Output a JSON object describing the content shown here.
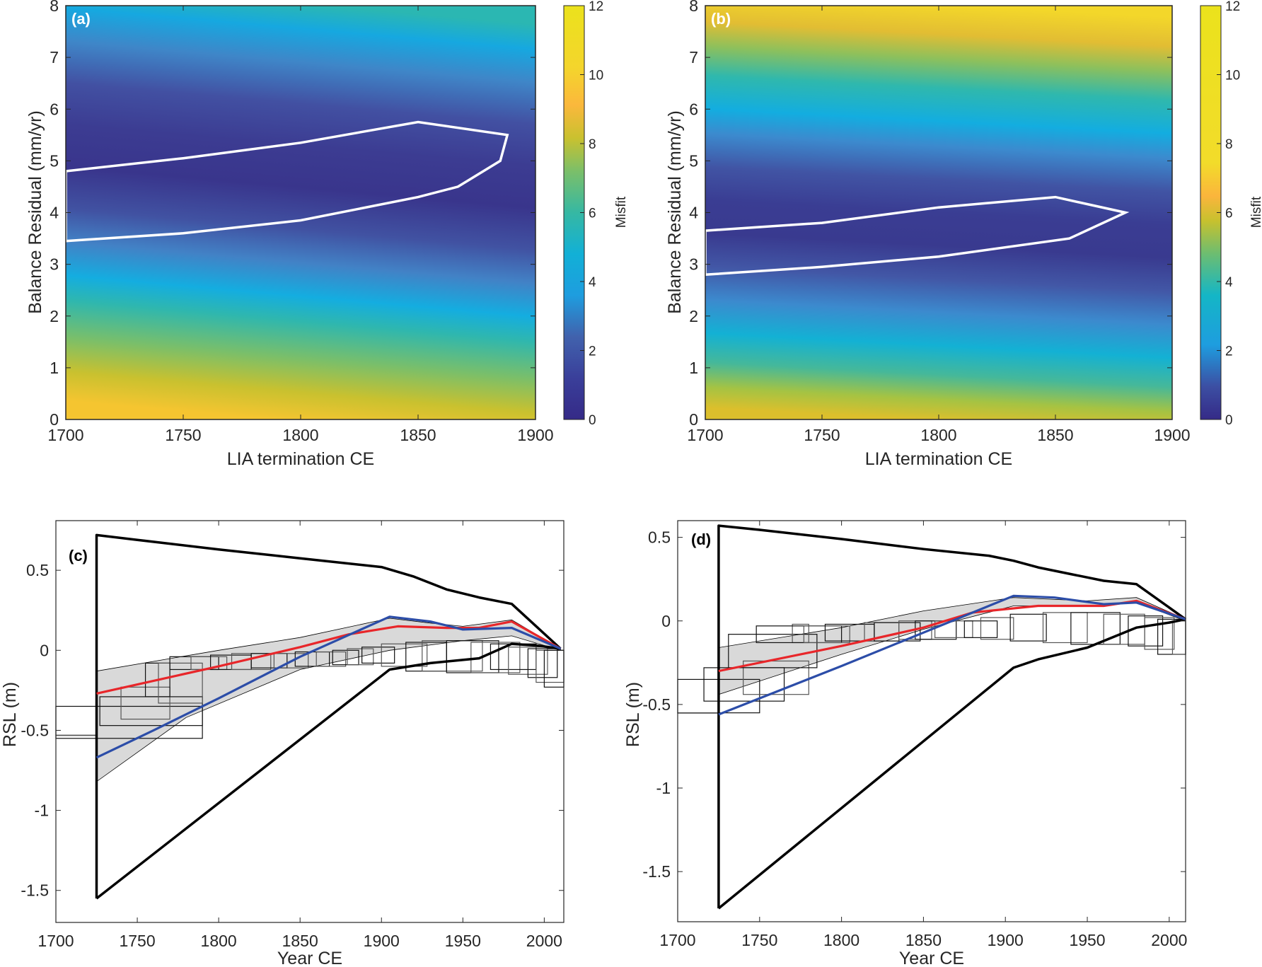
{
  "chart_data": [
    {
      "id": "a",
      "type": "heatmap",
      "panel_label": "(a)",
      "panel_label_color": "#ffffff",
      "xlabel": "LIA termination CE",
      "ylabel": "Balance Residual (mm/yr)",
      "xlim": [
        1700,
        1900
      ],
      "ylim": [
        0,
        8
      ],
      "xticks": [
        1700,
        1750,
        1800,
        1850,
        1900
      ],
      "yticks": [
        0,
        1,
        2,
        3,
        4,
        5,
        6,
        7,
        8
      ],
      "colorbar": {
        "label": "Misfit",
        "range": [
          0,
          12
        ],
        "ticks": [
          0,
          2,
          4,
          6,
          8,
          10,
          12
        ],
        "colormap": "parula"
      },
      "field_description": "Misfit minimum (~0-1) along a band from ~4.1 mm/yr at 1700 to ~5.0 mm/yr at 1850; increases to ~4 at 8 mm/yr and to ~9-11 at 0 mm/yr",
      "band": {
        "center": [
          [
            1700,
            4.1
          ],
          [
            1900,
            5.1
          ]
        ],
        "min_misfit": 0.5
      },
      "contour": {
        "color": "#ffffff",
        "points": [
          [
            1700,
            4.8
          ],
          [
            1750,
            5.05
          ],
          [
            1800,
            5.35
          ],
          [
            1850,
            5.75
          ],
          [
            1888,
            5.5
          ],
          [
            1885,
            5.0
          ],
          [
            1867,
            4.5
          ],
          [
            1850,
            4.3
          ],
          [
            1800,
            3.85
          ],
          [
            1750,
            3.6
          ],
          [
            1700,
            3.45
          ]
        ]
      }
    },
    {
      "id": "b",
      "type": "heatmap",
      "panel_label": "(b)",
      "panel_label_color": "#ffffff",
      "xlabel": "LIA termination CE",
      "ylabel": "Balance Residual (mm/yr)",
      "xlim": [
        1700,
        1900
      ],
      "ylim": [
        0,
        8
      ],
      "xticks": [
        1700,
        1750,
        1800,
        1850,
        1900
      ],
      "yticks": [
        0,
        1,
        2,
        3,
        4,
        5,
        6,
        7,
        8
      ],
      "colorbar": {
        "label": "Misfit",
        "range": [
          0,
          12
        ],
        "ticks": [
          0,
          2,
          4,
          6,
          8,
          10,
          12
        ],
        "colormap": "parula (saturates ~7)"
      },
      "field_description": "Misfit minimum along a band from ~3.3 mm/yr at 1700 to ~3.9 mm/yr at 1880; increases to ~6-7 at both 0 and 8 mm/yr",
      "band": {
        "center": [
          [
            1700,
            3.3
          ],
          [
            1900,
            3.9
          ]
        ],
        "min_misfit": 0.3
      },
      "contour": {
        "color": "#ffffff",
        "points": [
          [
            1700,
            3.65
          ],
          [
            1750,
            3.8
          ],
          [
            1800,
            4.1
          ],
          [
            1850,
            4.3
          ],
          [
            1880,
            4.0
          ],
          [
            1856,
            3.5
          ],
          [
            1800,
            3.15
          ],
          [
            1750,
            2.95
          ],
          [
            1700,
            2.8
          ]
        ]
      }
    },
    {
      "id": "c",
      "type": "line",
      "panel_label": "(c)",
      "xlabel": "Year CE",
      "ylabel": "RSL (m)",
      "xlim": [
        1700,
        2012
      ],
      "ylim": [
        -1.7,
        0.81
      ],
      "xticks": [
        1700,
        1750,
        1800,
        1850,
        1900,
        1950,
        2000
      ],
      "yticks": [
        -1.5,
        -1,
        -0.5,
        0,
        0.5
      ],
      "ytick_labels": [
        "-1.5",
        "-1",
        "-0.5",
        "0",
        "0.5"
      ],
      "envelope": {
        "color": "#000000",
        "upper": [
          [
            1725,
            -1.55
          ],
          [
            1725,
            0.72
          ],
          [
            1750,
            0.69
          ],
          [
            1800,
            0.63
          ],
          [
            1850,
            0.575
          ],
          [
            1900,
            0.52
          ],
          [
            1920,
            0.46
          ],
          [
            1940,
            0.38
          ],
          [
            1960,
            0.33
          ],
          [
            1980,
            0.29
          ],
          [
            2010,
            0.01
          ]
        ],
        "lower": [
          [
            1725,
            -1.55
          ],
          [
            1905,
            -0.12
          ],
          [
            1930,
            -0.08
          ],
          [
            1960,
            -0.05
          ],
          [
            1980,
            0.04
          ],
          [
            1995,
            0.03
          ],
          [
            2010,
            0.01
          ]
        ]
      },
      "band": {
        "fill": "#d9d9d9",
        "upper": [
          [
            1725,
            -0.13
          ],
          [
            1800,
            0.0
          ],
          [
            1850,
            0.08
          ],
          [
            1905,
            0.2
          ],
          [
            1930,
            0.17
          ],
          [
            1950,
            0.15
          ],
          [
            1980,
            0.19
          ],
          [
            2010,
            0.01
          ]
        ],
        "lower": [
          [
            1725,
            -0.82
          ],
          [
            1780,
            -0.42
          ],
          [
            1850,
            -0.12
          ],
          [
            1905,
            0.0
          ],
          [
            1950,
            0.06
          ],
          [
            1980,
            0.09
          ],
          [
            2010,
            0.0
          ]
        ]
      },
      "series": [
        {
          "name": "red",
          "color": "#e8262a",
          "points": [
            [
              1725,
              -0.27
            ],
            [
              1800,
              -0.1
            ],
            [
              1850,
              0.02
            ],
            [
              1880,
              0.1
            ],
            [
              1910,
              0.15
            ],
            [
              1940,
              0.14
            ],
            [
              1960,
              0.14
            ],
            [
              1980,
              0.18
            ],
            [
              2010,
              0.01
            ]
          ]
        },
        {
          "name": "blue",
          "color": "#2c4da8",
          "points": [
            [
              1725,
              -0.67
            ],
            [
              1760,
              -0.5
            ],
            [
              1800,
              -0.3
            ],
            [
              1850,
              -0.04
            ],
            [
              1905,
              0.21
            ],
            [
              1930,
              0.18
            ],
            [
              1950,
              0.13
            ],
            [
              1980,
              0.14
            ],
            [
              2010,
              0.01
            ]
          ]
        }
      ],
      "boxes": [
        [
          1700,
          1790,
          -0.55,
          -0.35
        ],
        [
          1700,
          1725,
          -0.53,
          -0.53
        ],
        [
          1727,
          1790,
          -0.47,
          -0.29
        ],
        [
          1740,
          1770,
          -0.43,
          -0.23
        ],
        [
          1755,
          1770,
          -0.29,
          -0.08
        ],
        [
          1763,
          1790,
          -0.33,
          -0.08
        ],
        [
          1770,
          1800,
          -0.12,
          -0.04
        ],
        [
          1783,
          1805,
          -0.12,
          -0.04
        ],
        [
          1795,
          1820,
          -0.12,
          -0.03
        ],
        [
          1808,
          1832,
          -0.12,
          -0.02
        ],
        [
          1820,
          1842,
          -0.11,
          -0.02
        ],
        [
          1834,
          1855,
          -0.11,
          -0.02
        ],
        [
          1847,
          1868,
          -0.1,
          -0.01
        ],
        [
          1860,
          1878,
          -0.1,
          -0.01
        ],
        [
          1870,
          1886,
          -0.09,
          0.0
        ],
        [
          1879,
          1895,
          -0.09,
          0.01
        ],
        [
          1888,
          1908,
          -0.08,
          0.02
        ],
        [
          1900,
          1928,
          -0.1,
          0.04
        ],
        [
          1915,
          1940,
          -0.13,
          0.05
        ],
        [
          1925,
          1962,
          -0.13,
          0.06
        ],
        [
          1940,
          1972,
          -0.14,
          0.06
        ],
        [
          1955,
          1985,
          -0.14,
          0.05
        ],
        [
          1967,
          1995,
          -0.12,
          0.04
        ],
        [
          1978,
          2002,
          -0.15,
          0.02
        ],
        [
          1990,
          2008,
          -0.17,
          0.01
        ],
        [
          1995,
          2012,
          -0.2,
          0.0
        ],
        [
          2000,
          2012,
          -0.23,
          0.0
        ]
      ]
    },
    {
      "id": "d",
      "type": "line",
      "panel_label": "(d)",
      "xlabel": "Year CE",
      "ylabel": "RSL (m)",
      "xlim": [
        1700,
        2010
      ],
      "ylim": [
        -1.8,
        0.6
      ],
      "xticks": [
        1700,
        1750,
        1800,
        1850,
        1900,
        1950,
        2000
      ],
      "yticks": [
        -1.5,
        -1,
        -0.5,
        0,
        0.5
      ],
      "ytick_labels": [
        "-1.5",
        "-1",
        "-0.5",
        "0",
        "0.5"
      ],
      "envelope": {
        "color": "#000000",
        "upper": [
          [
            1725,
            -1.72
          ],
          [
            1725,
            0.57
          ],
          [
            1750,
            0.545
          ],
          [
            1800,
            0.49
          ],
          [
            1850,
            0.43
          ],
          [
            1890,
            0.39
          ],
          [
            1905,
            0.36
          ],
          [
            1920,
            0.32
          ],
          [
            1940,
            0.28
          ],
          [
            1960,
            0.24
          ],
          [
            1980,
            0.22
          ],
          [
            2010,
            0.01
          ]
        ],
        "lower": [
          [
            1725,
            -1.72
          ],
          [
            1905,
            -0.28
          ],
          [
            1920,
            -0.23
          ],
          [
            1950,
            -0.16
          ],
          [
            1970,
            -0.08
          ],
          [
            1980,
            -0.04
          ],
          [
            2000,
            -0.01
          ],
          [
            2010,
            0.01
          ]
        ]
      },
      "band": {
        "fill": "#d9d9d9",
        "upper": [
          [
            1725,
            -0.16
          ],
          [
            1800,
            -0.04
          ],
          [
            1850,
            0.06
          ],
          [
            1905,
            0.14
          ],
          [
            1950,
            0.12
          ],
          [
            1980,
            0.14
          ],
          [
            2010,
            0.01
          ]
        ],
        "lower": [
          [
            1725,
            -0.44
          ],
          [
            1800,
            -0.2
          ],
          [
            1850,
            -0.05
          ],
          [
            1905,
            0.09
          ],
          [
            1950,
            0.09
          ],
          [
            1980,
            0.11
          ],
          [
            2010,
            0.0
          ]
        ]
      },
      "series": [
        {
          "name": "red",
          "color": "#e8262a",
          "points": [
            [
              1725,
              -0.3
            ],
            [
              1800,
              -0.15
            ],
            [
              1850,
              -0.04
            ],
            [
              1880,
              0.05
            ],
            [
              1920,
              0.09
            ],
            [
              1960,
              0.09
            ],
            [
              1980,
              0.12
            ],
            [
              2010,
              0.01
            ]
          ]
        },
        {
          "name": "blue",
          "color": "#2c4da8",
          "points": [
            [
              1725,
              -0.56
            ],
            [
              1800,
              -0.27
            ],
            [
              1850,
              -0.07
            ],
            [
              1905,
              0.15
            ],
            [
              1930,
              0.14
            ],
            [
              1960,
              0.1
            ],
            [
              1980,
              0.11
            ],
            [
              2010,
              0.01
            ]
          ]
        }
      ],
      "boxes": [
        [
          1700,
          1750,
          -0.55,
          -0.35
        ],
        [
          1700,
          1725,
          -0.55,
          -0.55
        ],
        [
          1716,
          1765,
          -0.48,
          -0.28
        ],
        [
          1740,
          1780,
          -0.44,
          -0.24
        ],
        [
          1731,
          1785,
          -0.28,
          -0.08
        ],
        [
          1770,
          1780,
          -0.13,
          -0.02
        ],
        [
          1748,
          1800,
          -0.13,
          -0.03
        ],
        [
          1777,
          1805,
          -0.13,
          -0.03
        ],
        [
          1790,
          1820,
          -0.12,
          -0.02
        ],
        [
          1814,
          1835,
          -0.12,
          -0.01
        ],
        [
          1820,
          1848,
          -0.12,
          -0.01
        ],
        [
          1835,
          1855,
          -0.11,
          0.0
        ],
        [
          1845,
          1870,
          -0.11,
          0.0
        ],
        [
          1857,
          1880,
          -0.1,
          0.0
        ],
        [
          1875,
          1895,
          -0.1,
          0.0
        ],
        [
          1885,
          1905,
          -0.11,
          0.02
        ],
        [
          1903,
          1925,
          -0.12,
          0.04
        ],
        [
          1923,
          1950,
          -0.13,
          0.05
        ],
        [
          1940,
          1970,
          -0.14,
          0.05
        ],
        [
          1960,
          1985,
          -0.14,
          0.04
        ],
        [
          1975,
          1996,
          -0.15,
          0.03
        ],
        [
          1985,
          2003,
          -0.17,
          0.02
        ],
        [
          1993,
          2010,
          -0.2,
          0.01
        ],
        [
          2002,
          2010,
          -0.2,
          0.0
        ]
      ]
    }
  ]
}
